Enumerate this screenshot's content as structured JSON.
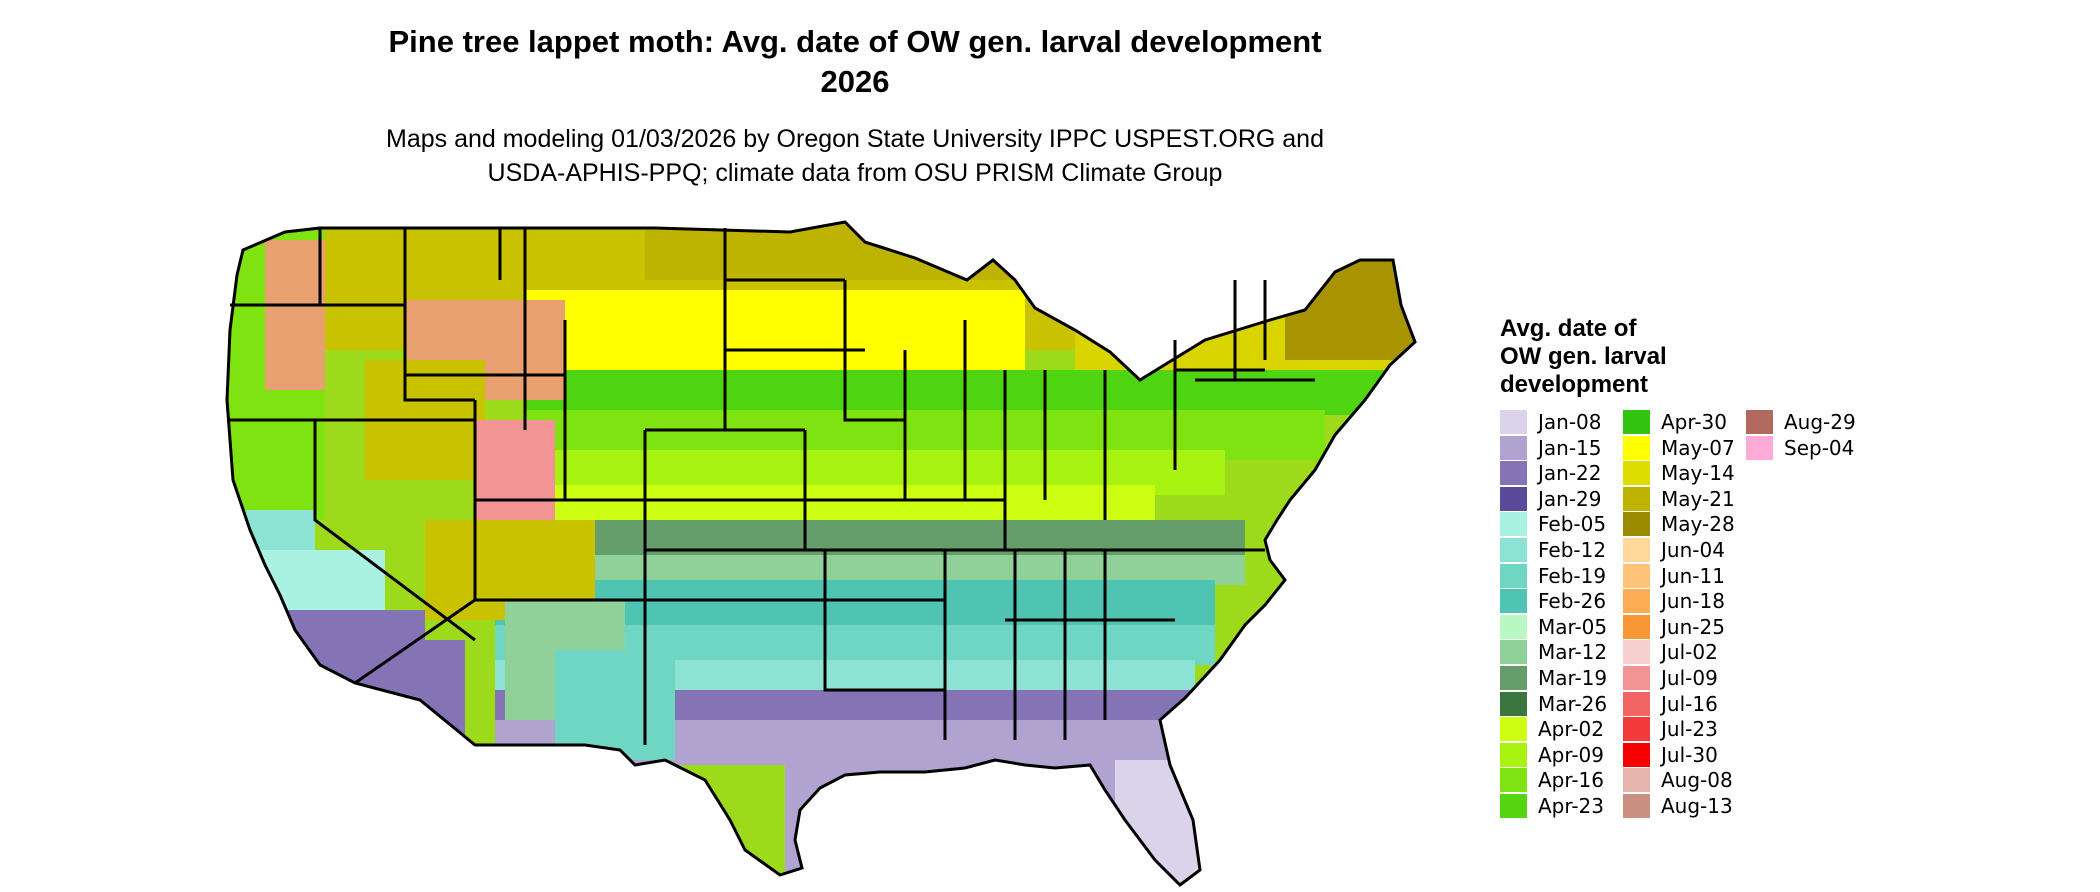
{
  "title": {
    "line1": "Pine tree lappet moth: Avg. date of OW gen. larval development",
    "line2": "2026"
  },
  "subtitle": {
    "line1": "Maps and modeling 01/03/2026 by Oregon State University IPPC USPEST.ORG and",
    "line2": "USDA-APHIS-PPQ; climate data from OSU PRISM Climate Group"
  },
  "legend": {
    "title_lines": [
      "Avg. date of",
      "OW gen. larval",
      "development"
    ],
    "items": [
      {
        "label": "Jan-08",
        "color": "#dad3ea"
      },
      {
        "label": "Jan-15",
        "color": "#b0a3d0"
      },
      {
        "label": "Jan-22",
        "color": "#8574b5"
      },
      {
        "label": "Jan-29",
        "color": "#5a4a9a"
      },
      {
        "label": "Feb-05",
        "color": "#a9f1e0"
      },
      {
        "label": "Feb-12",
        "color": "#8de3d3"
      },
      {
        "label": "Feb-19",
        "color": "#6fd6c4"
      },
      {
        "label": "Feb-26",
        "color": "#4fc4b2"
      },
      {
        "label": "Mar-05",
        "color": "#b9f8c3"
      },
      {
        "label": "Mar-12",
        "color": "#8fd198"
      },
      {
        "label": "Mar-19",
        "color": "#659e6b"
      },
      {
        "label": "Mar-26",
        "color": "#3b7540"
      },
      {
        "label": "Apr-02",
        "color": "#ccff11"
      },
      {
        "label": "Apr-09",
        "color": "#a8f211"
      },
      {
        "label": "Apr-16",
        "color": "#7ee311"
      },
      {
        "label": "Apr-23",
        "color": "#55d611"
      },
      {
        "label": "Apr-30",
        "color": "#33c411"
      },
      {
        "label": "May-07",
        "color": "#ffff00"
      },
      {
        "label": "May-14",
        "color": "#dede00"
      },
      {
        "label": "May-21",
        "color": "#bdb300"
      },
      {
        "label": "May-28",
        "color": "#9c8a00"
      },
      {
        "label": "Jun-04",
        "color": "#ffd79a"
      },
      {
        "label": "Jun-11",
        "color": "#ffc37a"
      },
      {
        "label": "Jun-18",
        "color": "#fcac55"
      },
      {
        "label": "Jun-25",
        "color": "#f79735"
      },
      {
        "label": "Jul-02",
        "color": "#f7cfcf"
      },
      {
        "label": "Jul-09",
        "color": "#f29494"
      },
      {
        "label": "Jul-16",
        "color": "#f26565"
      },
      {
        "label": "Jul-23",
        "color": "#f23a3a"
      },
      {
        "label": "Jul-30",
        "color": "#f70000"
      },
      {
        "label": "Aug-08",
        "color": "#e5b5ab"
      },
      {
        "label": "Aug-13",
        "color": "#c98f80"
      },
      {
        "label": "Aug-29",
        "color": "#b36a5e"
      },
      {
        "label": "Sep-04",
        "color": "#ffabd7"
      }
    ]
  }
}
